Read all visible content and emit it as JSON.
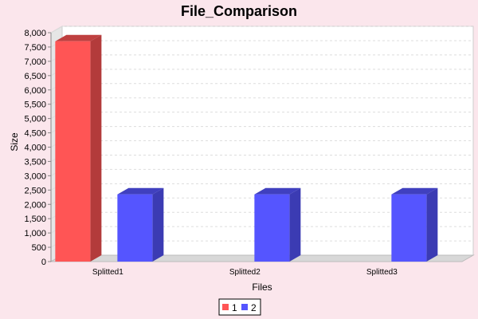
{
  "chart_data": {
    "type": "bar",
    "title": "File_Comparison",
    "xlabel": "Files",
    "ylabel": "Size",
    "categories": [
      "Splitted1",
      "Splitted2",
      "Splitted3"
    ],
    "ylim": [
      0,
      8000
    ],
    "y_tick_step": 500,
    "y_tick_labels": [
      "0",
      "500",
      "1,000",
      "1,500",
      "2,000",
      "2,500",
      "3,000",
      "3,500",
      "4,000",
      "4,500",
      "5,000",
      "5,500",
      "6,000",
      "6,500",
      "7,000",
      "7,500",
      "8,000"
    ],
    "grid": true,
    "legend_placement": "bottom-center",
    "series": [
      {
        "name": "1",
        "color": "#ff5555",
        "values": [
          7700,
          null,
          null
        ]
      },
      {
        "name": "2",
        "color": "#5555ff",
        "values": [
          2350,
          2350,
          2350
        ]
      }
    ]
  }
}
